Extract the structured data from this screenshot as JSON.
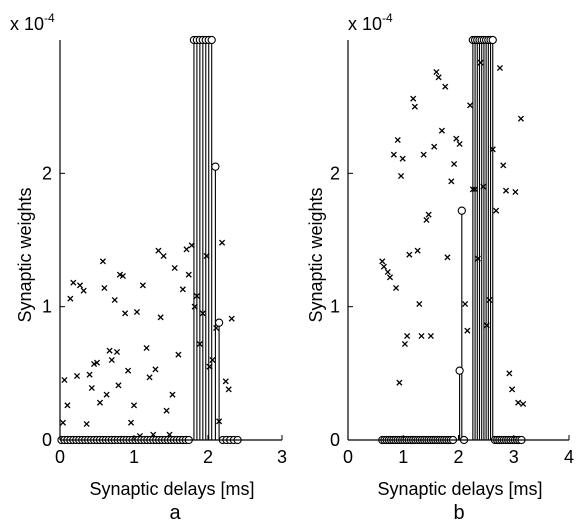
{
  "chart_data": [
    {
      "type": "scatter",
      "panel_label": "a",
      "xlabel": "Synaptic delays [ms]",
      "ylabel": "Synaptic weights",
      "y_multiplier": "x 10",
      "y_exponent": "-4",
      "xlim": [
        0,
        3
      ],
      "ylim": [
        0,
        3
      ],
      "xticks": [
        0,
        1,
        2,
        3
      ],
      "yticks": [
        0,
        1,
        2
      ],
      "grid": false,
      "series": [
        {
          "marker": "x",
          "points": [
            [
              0.04,
              0.13
            ],
            [
              0.06,
              0.45
            ],
            [
              0.1,
              0.26
            ],
            [
              0.14,
              1.06
            ],
            [
              0.18,
              1.18
            ],
            [
              0.23,
              0.48
            ],
            [
              0.27,
              1.16
            ],
            [
              0.32,
              1.12
            ],
            [
              0.36,
              0.12
            ],
            [
              0.4,
              0.49
            ],
            [
              0.43,
              0.39
            ],
            [
              0.46,
              0.57
            ],
            [
              0.5,
              0.58
            ],
            [
              0.54,
              0.28
            ],
            [
              0.58,
              1.34
            ],
            [
              0.6,
              1.14
            ],
            [
              0.63,
              0.34
            ],
            [
              0.67,
              0.67
            ],
            [
              0.7,
              0.6
            ],
            [
              0.74,
              1.05
            ],
            [
              0.77,
              0.66
            ],
            [
              0.79,
              0.41
            ],
            [
              0.81,
              1.24
            ],
            [
              0.85,
              1.23
            ],
            [
              0.88,
              0.95
            ],
            [
              0.92,
              0.52
            ],
            [
              0.96,
              0.13
            ],
            [
              1.0,
              0.26
            ],
            [
              1.04,
              0.96
            ],
            [
              1.08,
              0.03
            ],
            [
              1.12,
              1.16
            ],
            [
              1.17,
              0.69
            ],
            [
              1.21,
              0.47
            ],
            [
              1.26,
              0.04
            ],
            [
              1.29,
              0.53
            ],
            [
              1.33,
              1.42
            ],
            [
              1.36,
              0.92
            ],
            [
              1.4,
              1.38
            ],
            [
              1.44,
              0.22
            ],
            [
              1.48,
              0.04
            ],
            [
              1.52,
              0.34
            ],
            [
              1.55,
              1.29
            ],
            [
              1.6,
              0.64
            ],
            [
              1.66,
              1.13
            ],
            [
              1.71,
              1.43
            ],
            [
              1.74,
              1.24
            ],
            [
              1.78,
              1.46
            ],
            [
              1.82,
              1.0
            ],
            [
              1.85,
              1.08
            ],
            [
              1.89,
              0.72
            ],
            [
              1.93,
              0.95
            ],
            [
              1.98,
              1.38
            ],
            [
              2.02,
              0.55
            ],
            [
              2.06,
              0.6
            ],
            [
              2.11,
              0.84
            ],
            [
              2.15,
              0.14
            ],
            [
              2.19,
              1.48
            ],
            [
              2.24,
              0.44
            ],
            [
              2.28,
              0.38
            ],
            [
              2.32,
              0.91
            ]
          ]
        },
        {
          "marker": "o",
          "points": [
            [
              0.02,
              0
            ],
            [
              0.06,
              0
            ],
            [
              0.1,
              0
            ],
            [
              0.14,
              0
            ],
            [
              0.18,
              0
            ],
            [
              0.22,
              0
            ],
            [
              0.26,
              0
            ],
            [
              0.3,
              0
            ],
            [
              0.34,
              0
            ],
            [
              0.38,
              0
            ],
            [
              0.42,
              0
            ],
            [
              0.46,
              0
            ],
            [
              0.5,
              0
            ],
            [
              0.54,
              0
            ],
            [
              0.58,
              0
            ],
            [
              0.62,
              0
            ],
            [
              0.66,
              0
            ],
            [
              0.7,
              0
            ],
            [
              0.74,
              0
            ],
            [
              0.78,
              0
            ],
            [
              0.82,
              0
            ],
            [
              0.86,
              0
            ],
            [
              0.9,
              0
            ],
            [
              0.94,
              0
            ],
            [
              0.98,
              0
            ],
            [
              1.02,
              0
            ],
            [
              1.06,
              0
            ],
            [
              1.1,
              0
            ],
            [
              1.14,
              0
            ],
            [
              1.18,
              0
            ],
            [
              1.22,
              0
            ],
            [
              1.26,
              0
            ],
            [
              1.3,
              0
            ],
            [
              1.34,
              0
            ],
            [
              1.38,
              0
            ],
            [
              1.42,
              0
            ],
            [
              1.46,
              0
            ],
            [
              1.5,
              0
            ],
            [
              1.54,
              0
            ],
            [
              1.58,
              0
            ],
            [
              1.62,
              0
            ],
            [
              1.66,
              0
            ],
            [
              1.7,
              0
            ],
            [
              1.74,
              0
            ],
            [
              1.81,
              3
            ],
            [
              1.85,
              3
            ],
            [
              1.89,
              3
            ],
            [
              1.93,
              3
            ],
            [
              1.97,
              3
            ],
            [
              2.01,
              3
            ],
            [
              2.05,
              3
            ],
            [
              2.1,
              2.05
            ],
            [
              2.15,
              0.88
            ],
            [
              2.2,
              0
            ],
            [
              2.25,
              0
            ],
            [
              2.3,
              0
            ],
            [
              2.35,
              0
            ],
            [
              2.4,
              0
            ]
          ]
        }
      ],
      "stems": [
        1.81,
        1.85,
        1.89,
        1.93,
        1.97,
        2.01,
        2.05,
        2.1,
        2.15
      ]
    },
    {
      "type": "scatter",
      "panel_label": "b",
      "xlabel": "Synaptic delays [ms]",
      "ylabel": "Synaptic weights",
      "y_multiplier": "x 10",
      "y_exponent": "-4",
      "xlim": [
        0,
        4
      ],
      "ylim": [
        0,
        3
      ],
      "xticks": [
        0,
        1,
        2,
        3,
        4
      ],
      "yticks": [
        0,
        1,
        2
      ],
      "grid": false,
      "series": [
        {
          "marker": "x",
          "points": [
            [
              0.62,
              1.34
            ],
            [
              0.65,
              1.3
            ],
            [
              0.72,
              1.26
            ],
            [
              0.76,
              1.22
            ],
            [
              0.83,
              2.14
            ],
            [
              0.87,
              1.14
            ],
            [
              0.9,
              2.25
            ],
            [
              0.93,
              0.43
            ],
            [
              0.96,
              1.98
            ],
            [
              0.99,
              2.11
            ],
            [
              1.03,
              0.72
            ],
            [
              1.07,
              0.78
            ],
            [
              1.11,
              1.39
            ],
            [
              1.18,
              2.56
            ],
            [
              1.21,
              2.5
            ],
            [
              1.26,
              1.42
            ],
            [
              1.29,
              1.02
            ],
            [
              1.33,
              0.78
            ],
            [
              1.37,
              2.14
            ],
            [
              1.42,
              1.65
            ],
            [
              1.46,
              1.69
            ],
            [
              1.5,
              0.78
            ],
            [
              1.56,
              2.2
            ],
            [
              1.6,
              2.76
            ],
            [
              1.64,
              2.72
            ],
            [
              1.7,
              2.32
            ],
            [
              1.76,
              2.65
            ],
            [
              1.8,
              1.37
            ],
            [
              1.87,
              1.94
            ],
            [
              1.92,
              2.07
            ],
            [
              1.96,
              2.26
            ],
            [
              2.02,
              2.22
            ],
            [
              2.12,
              1.02
            ],
            [
              2.16,
              0.82
            ],
            [
              2.21,
              2.51
            ],
            [
              2.26,
              1.88
            ],
            [
              2.3,
              1.88
            ],
            [
              2.35,
              1.36
            ],
            [
              2.4,
              2.83
            ],
            [
              2.45,
              1.9
            ],
            [
              2.51,
              0.86
            ],
            [
              2.56,
              1.05
            ],
            [
              2.62,
              2.18
            ],
            [
              2.68,
              1.72
            ],
            [
              2.75,
              2.79
            ],
            [
              2.81,
              2.06
            ],
            [
              2.86,
              1.87
            ],
            [
              2.92,
              0.5
            ],
            [
              2.97,
              0.38
            ],
            [
              3.03,
              1.86
            ],
            [
              3.08,
              0.28
            ],
            [
              3.13,
              2.41
            ],
            [
              3.17,
              0.27
            ]
          ]
        },
        {
          "marker": "o",
          "points": [
            [
              0.62,
              0
            ],
            [
              0.66,
              0
            ],
            [
              0.7,
              0
            ],
            [
              0.74,
              0
            ],
            [
              0.78,
              0
            ],
            [
              0.82,
              0
            ],
            [
              0.86,
              0
            ],
            [
              0.9,
              0
            ],
            [
              0.94,
              0
            ],
            [
              0.98,
              0
            ],
            [
              1.02,
              0
            ],
            [
              1.06,
              0
            ],
            [
              1.1,
              0
            ],
            [
              1.14,
              0
            ],
            [
              1.18,
              0
            ],
            [
              1.22,
              0
            ],
            [
              1.26,
              0
            ],
            [
              1.3,
              0
            ],
            [
              1.34,
              0
            ],
            [
              1.38,
              0
            ],
            [
              1.42,
              0
            ],
            [
              1.46,
              0
            ],
            [
              1.5,
              0
            ],
            [
              1.54,
              0
            ],
            [
              1.58,
              0
            ],
            [
              1.62,
              0
            ],
            [
              1.66,
              0
            ],
            [
              1.7,
              0
            ],
            [
              1.74,
              0
            ],
            [
              1.78,
              0
            ],
            [
              1.82,
              0
            ],
            [
              1.86,
              0
            ],
            [
              1.9,
              0
            ],
            [
              2.02,
              0.52
            ],
            [
              2.06,
              1.72
            ],
            [
              2.1,
              0
            ],
            [
              2.26,
              3
            ],
            [
              2.3,
              3
            ],
            [
              2.34,
              3
            ],
            [
              2.38,
              3
            ],
            [
              2.42,
              3
            ],
            [
              2.46,
              3
            ],
            [
              2.5,
              3
            ],
            [
              2.54,
              3
            ],
            [
              2.58,
              3
            ],
            [
              2.62,
              3
            ],
            [
              2.66,
              0
            ],
            [
              2.7,
              0
            ],
            [
              2.74,
              0
            ],
            [
              2.78,
              0
            ],
            [
              2.82,
              0
            ],
            [
              2.86,
              0
            ],
            [
              2.9,
              0
            ],
            [
              2.94,
              0
            ],
            [
              2.98,
              0
            ],
            [
              3.02,
              0
            ],
            [
              3.06,
              0
            ],
            [
              3.1,
              0
            ],
            [
              3.14,
              0
            ]
          ]
        }
      ],
      "stems": [
        2.02,
        2.06,
        2.26,
        2.3,
        2.34,
        2.38,
        2.42,
        2.46,
        2.5,
        2.54,
        2.58,
        2.62
      ]
    }
  ]
}
